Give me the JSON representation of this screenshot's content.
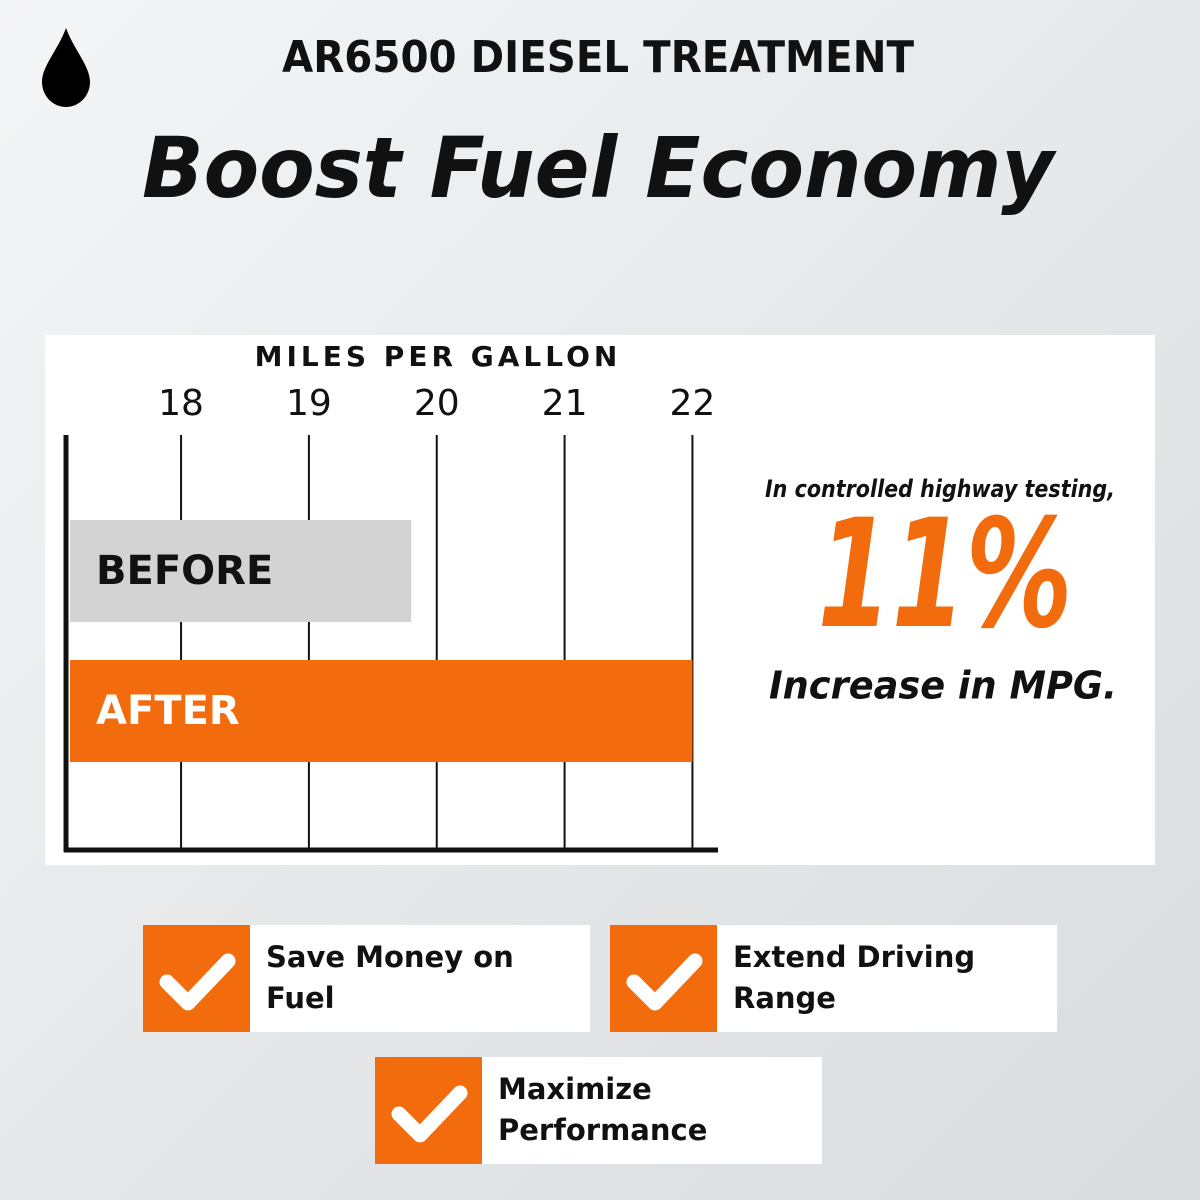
{
  "chart_data": {
    "type": "bar",
    "orientation": "horizontal",
    "header": "AR6500 DIESEL TREATMENT",
    "title": "Boost Fuel Economy",
    "xlabel": "MILES PER GALLON",
    "categories": [
      "BEFORE",
      "AFTER"
    ],
    "values": [
      19.8,
      22
    ],
    "colors": [
      "#d3d3d3",
      "#f26c0d"
    ],
    "label_colors": [
      "#111111",
      "#ffffff"
    ],
    "xlim": [
      17.1,
      22.2
    ],
    "xticks": [
      18,
      19,
      20,
      21,
      22
    ],
    "grid": true,
    "annotation": [
      "In controlled highway testing,",
      "11%",
      "Increase in MPG."
    ]
  },
  "benefits": [
    [
      "Save Money on",
      "Fuel"
    ],
    [
      "Extend Driving",
      "Range"
    ],
    [
      "Maximize",
      "Performance"
    ]
  ]
}
